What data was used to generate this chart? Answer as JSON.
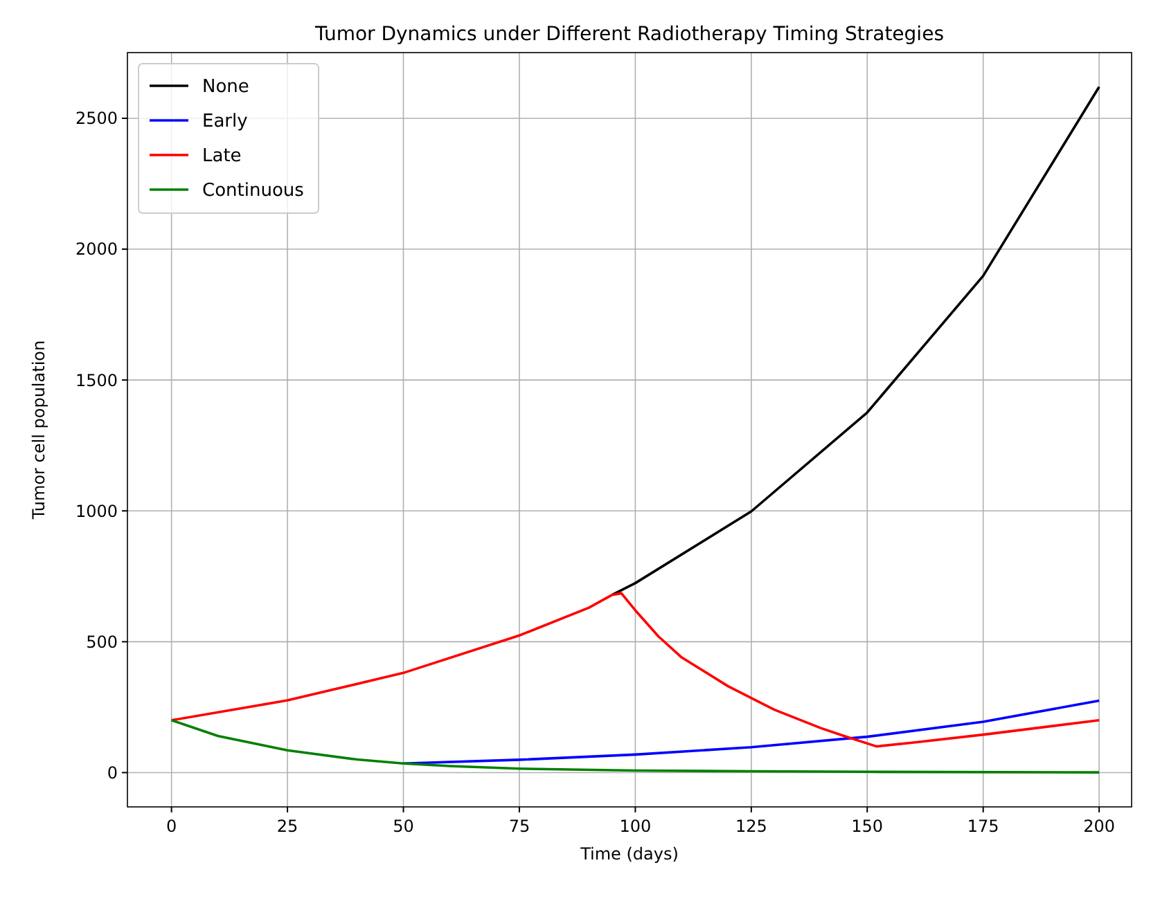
{
  "chart_data": {
    "type": "line",
    "title": "Tumor Dynamics under Different Radiotherapy Timing Strategies",
    "xlabel": "Time (days)",
    "ylabel": "Tumor cell population",
    "xlim": [
      -9.5,
      207
    ],
    "ylim": [
      -131,
      2751
    ],
    "xticks": [
      0,
      25,
      50,
      75,
      100,
      125,
      150,
      175,
      200
    ],
    "yticks": [
      0,
      500,
      1000,
      1500,
      2000,
      2500
    ],
    "grid": true,
    "legend": "top left",
    "line_style": "solid",
    "marker": "none",
    "series": [
      {
        "name": "None",
        "color": "#000000",
        "x": [
          95,
          100,
          125,
          150,
          175,
          200
        ],
        "values": [
          679,
          724,
          998,
          1376,
          1898,
          2620
        ]
      },
      {
        "name": "Early",
        "color": "#0000ff",
        "x": [
          50,
          75,
          100,
          125,
          150,
          175,
          200
        ],
        "values": [
          35,
          49,
          69,
          97,
          137,
          194,
          275
        ]
      },
      {
        "name": "Late",
        "color": "#ff0000",
        "x": [
          0,
          25,
          50,
          75,
          90,
          95,
          97,
          100,
          105,
          110,
          120,
          130,
          140,
          145,
          152,
          160,
          175,
          190,
          200
        ],
        "values": [
          200,
          276,
          381,
          524,
          630,
          679,
          685,
          620,
          520,
          440,
          330,
          240,
          170,
          140,
          100,
          115,
          145,
          178,
          200
        ]
      },
      {
        "name": "Continuous",
        "color": "#008000",
        "x": [
          0,
          10,
          25,
          40,
          50,
          60,
          75,
          100,
          125,
          150,
          200
        ],
        "values": [
          200,
          140,
          85,
          50,
          35,
          25,
          15,
          8,
          5,
          3,
          1
        ]
      }
    ]
  }
}
